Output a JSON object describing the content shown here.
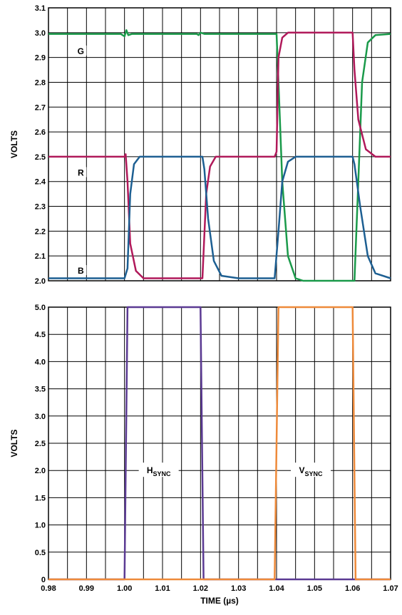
{
  "chart_data": [
    {
      "type": "line",
      "ylabel": "VOLTS",
      "xlim": [
        0.98,
        1.07
      ],
      "ylim": [
        2.0,
        3.1
      ],
      "x_ticks": [
        "0.98",
        "0.99",
        "1.00",
        "1.01",
        "1.02",
        "1.03",
        "1.04",
        "1.05",
        "1.06",
        "1.07"
      ],
      "y_ticks": [
        "2.0",
        "2.1",
        "2.2",
        "2.3",
        "2.4",
        "2.5",
        "2.6",
        "2.7",
        "2.8",
        "2.9",
        "3.0",
        "3.1"
      ],
      "grid": true,
      "series": [
        {
          "name": "G",
          "color": "#1a9a4a",
          "points": [
            [
              0.98,
              2.995
            ],
            [
              0.999,
              2.995
            ],
            [
              1.0,
              2.985
            ],
            [
              1.0005,
              3.01
            ],
            [
              1.001,
              2.99
            ],
            [
              1.002,
              2.995
            ],
            [
              1.019,
              2.995
            ],
            [
              1.0195,
              2.99
            ],
            [
              1.02,
              3.0
            ],
            [
              1.021,
              2.995
            ],
            [
              1.04,
              2.995
            ],
            [
              1.0405,
              2.8
            ],
            [
              1.0415,
              2.4
            ],
            [
              1.043,
              2.1
            ],
            [
              1.045,
              2.01
            ],
            [
              1.047,
              2.0
            ],
            [
              1.0605,
              2.0
            ],
            [
              1.0615,
              2.4
            ],
            [
              1.0625,
              2.8
            ],
            [
              1.064,
              2.96
            ],
            [
              1.066,
              2.99
            ],
            [
              1.07,
              2.995
            ]
          ]
        },
        {
          "name": "R",
          "color": "#b0195a",
          "points": [
            [
              0.98,
              2.5
            ],
            [
              1.0,
              2.5
            ],
            [
              1.0003,
              2.51
            ],
            [
              1.0008,
              2.4
            ],
            [
              1.0015,
              2.15
            ],
            [
              1.003,
              2.04
            ],
            [
              1.005,
              2.01
            ],
            [
              1.0205,
              2.01
            ],
            [
              1.0215,
              2.35
            ],
            [
              1.0225,
              2.46
            ],
            [
              1.024,
              2.5
            ],
            [
              1.0395,
              2.5
            ],
            [
              1.04,
              2.52
            ],
            [
              1.0405,
              2.9
            ],
            [
              1.0415,
              2.98
            ],
            [
              1.043,
              3.0
            ],
            [
              1.06,
              3.0
            ],
            [
              1.0605,
              2.85
            ],
            [
              1.0615,
              2.65
            ],
            [
              1.0635,
              2.53
            ],
            [
              1.066,
              2.5
            ],
            [
              1.07,
              2.5
            ]
          ]
        },
        {
          "name": "B",
          "color": "#1d5f92",
          "points": [
            [
              0.98,
              2.01
            ],
            [
              1.0,
              2.01
            ],
            [
              1.0008,
              2.05
            ],
            [
              1.0015,
              2.35
            ],
            [
              1.0025,
              2.47
            ],
            [
              1.004,
              2.5
            ],
            [
              1.0205,
              2.5
            ],
            [
              1.021,
              2.45
            ],
            [
              1.022,
              2.25
            ],
            [
              1.0235,
              2.08
            ],
            [
              1.0255,
              2.02
            ],
            [
              1.03,
              2.01
            ],
            [
              1.0395,
              2.01
            ],
            [
              1.0405,
              2.2
            ],
            [
              1.0415,
              2.4
            ],
            [
              1.043,
              2.48
            ],
            [
              1.045,
              2.5
            ],
            [
              1.06,
              2.5
            ],
            [
              1.0605,
              2.47
            ],
            [
              1.062,
              2.3
            ],
            [
              1.064,
              2.1
            ],
            [
              1.066,
              2.03
            ],
            [
              1.07,
              2.01
            ]
          ]
        }
      ]
    },
    {
      "type": "line",
      "xlabel": "TIME (µs)",
      "ylabel": "VOLTS",
      "xlim": [
        0.98,
        1.07
      ],
      "ylim": [
        0,
        5.0
      ],
      "x_ticks": [
        "0.98",
        "0.99",
        "1.00",
        "1.01",
        "1.02",
        "1.03",
        "1.04",
        "1.05",
        "1.06",
        "1.07"
      ],
      "y_ticks": [
        "0",
        "0.5",
        "1.0",
        "1.5",
        "2.0",
        "2.5",
        "3.0",
        "3.5",
        "4.0",
        "4.5",
        "5.0"
      ],
      "grid": true,
      "series": [
        {
          "name": "HSYNC",
          "name_main": "H",
          "name_sub": "SYNC",
          "label_at": [
            1.009,
            2.0
          ],
          "color": "#5b3a93",
          "points": [
            [
              0.98,
              0
            ],
            [
              1.0,
              0
            ],
            [
              1.0008,
              5.0
            ],
            [
              1.02,
              5.0
            ],
            [
              1.0208,
              0
            ],
            [
              1.07,
              0
            ]
          ]
        },
        {
          "name": "VSYNC",
          "name_main": "V",
          "name_sub": "SYNC",
          "label_at": [
            1.049,
            2.0
          ],
          "color": "#ee8a3a",
          "points": [
            [
              0.98,
              0
            ],
            [
              1.0395,
              0
            ],
            [
              1.0405,
              5.0
            ],
            [
              1.06,
              5.0
            ],
            [
              1.0608,
              0
            ],
            [
              1.07,
              0
            ]
          ]
        }
      ]
    }
  ]
}
